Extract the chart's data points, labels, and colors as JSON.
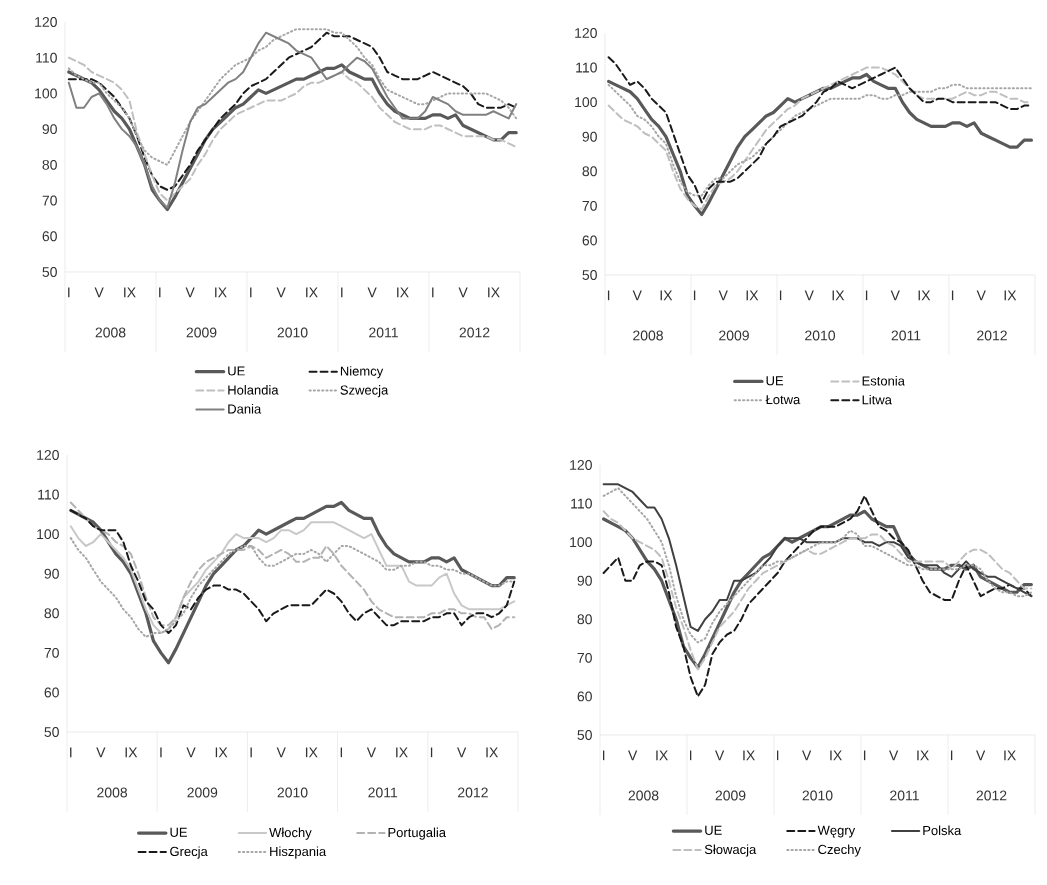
{
  "chart_data": [
    {
      "type": "line",
      "legend": "bottom",
      "ylim": [
        50,
        120
      ],
      "yticks": [
        50,
        60,
        70,
        80,
        90,
        100,
        110,
        120
      ],
      "categories": [
        "I",
        null,
        null,
        null,
        "V",
        null,
        null,
        null,
        "IX",
        null,
        null,
        null,
        "I",
        null,
        null,
        null,
        "V",
        null,
        null,
        null,
        "IX",
        null,
        null,
        null,
        "I",
        null,
        null,
        null,
        "V",
        null,
        null,
        null,
        "IX",
        null,
        null,
        null,
        "I",
        null,
        null,
        null,
        "V",
        null,
        null,
        null,
        "IX",
        null,
        null,
        null,
        "I",
        null,
        null,
        null,
        "V",
        null,
        null,
        null,
        "IX",
        null,
        null,
        null
      ],
      "annotations": [
        "2008",
        "2009",
        "2010",
        "2011",
        "2012"
      ],
      "series": [
        {
          "name": "UE",
          "color": "#595959",
          "line_style": "solid",
          "values": [
            106,
            105,
            104,
            103,
            101,
            98,
            95,
            93,
            90,
            85,
            80,
            73,
            70,
            67.5,
            71,
            75,
            79,
            83,
            87,
            90,
            92,
            94,
            96,
            97,
            99,
            101,
            100,
            101,
            102,
            103,
            104,
            104,
            105,
            106,
            107,
            107,
            108,
            106,
            105,
            104,
            104,
            100,
            97,
            95,
            94,
            93,
            93,
            93,
            94,
            94,
            93,
            94,
            91,
            90,
            89,
            88,
            87,
            87,
            89,
            89
          ]
        },
        {
          "name": "Niemcy",
          "color": "#1a1a1a",
          "line_style": "dashed",
          "values": [
            104,
            104,
            104,
            104,
            103,
            101,
            99,
            96,
            93,
            88,
            82,
            77,
            74,
            73,
            74,
            77,
            80,
            84,
            87,
            90,
            93,
            95,
            97,
            100,
            102,
            103,
            104,
            106,
            108,
            110,
            111,
            112,
            113,
            115,
            117,
            116,
            116,
            116,
            115,
            114,
            113,
            110,
            106,
            105,
            104,
            104,
            104,
            105,
            106,
            105,
            104,
            103,
            102,
            100,
            97,
            96,
            96,
            96,
            97,
            96
          ]
        },
        {
          "name": "Holandia",
          "color": "#bfbfbf",
          "line_style": "dashed",
          "values": [
            110,
            109,
            108,
            106,
            105,
            104,
            103,
            101,
            98,
            89,
            83,
            77,
            72,
            70,
            72,
            74,
            76,
            80,
            83,
            87,
            90,
            92,
            94,
            95,
            96,
            97,
            98,
            98,
            98,
            99,
            100,
            102,
            103,
            103,
            104,
            105,
            106,
            104,
            103,
            101,
            99,
            96,
            94,
            92,
            91,
            90,
            90,
            90,
            91,
            91,
            90,
            89,
            88,
            88,
            88,
            88,
            87,
            87,
            86,
            85
          ]
        },
        {
          "name": "Szwecja",
          "color": "#a6a6a6",
          "line_style": "dotted",
          "values": [
            107,
            105,
            104,
            103,
            103,
            100,
            98,
            96,
            93,
            88,
            84,
            82,
            81,
            80,
            84,
            88,
            92,
            95,
            98,
            101,
            104,
            106,
            108,
            109,
            110,
            112,
            113,
            115,
            116,
            117,
            118,
            118,
            118,
            118,
            118,
            117,
            117,
            115,
            113,
            110,
            108,
            104,
            101,
            100,
            99,
            98,
            97,
            97,
            98,
            99,
            100,
            100,
            100,
            100,
            100,
            100,
            99,
            98,
            96,
            93
          ]
        },
        {
          "name": "Dania",
          "color": "#808080",
          "line_style": "solid",
          "values": [
            103,
            96,
            96,
            99,
            100,
            97,
            93,
            90,
            88,
            85,
            80,
            74,
            70,
            68,
            75,
            84,
            92,
            96,
            97,
            99,
            101,
            103,
            104,
            106,
            110,
            114,
            117,
            116,
            115,
            114,
            112,
            111,
            110,
            107,
            104,
            105,
            106,
            108,
            110,
            109,
            107,
            103,
            99,
            96,
            93,
            93,
            93,
            95,
            99,
            98,
            97,
            95,
            94,
            94,
            94,
            94,
            95,
            94,
            93,
            97
          ]
        }
      ]
    },
    {
      "type": "line",
      "legend": "bottom",
      "ylim": [
        50,
        120
      ],
      "yticks": [
        50,
        60,
        70,
        80,
        90,
        100,
        110,
        120
      ],
      "categories": [
        "I",
        null,
        null,
        null,
        "V",
        null,
        null,
        null,
        "IX",
        null,
        null,
        null,
        "I",
        null,
        null,
        null,
        "V",
        null,
        null,
        null,
        "IX",
        null,
        null,
        null,
        "I",
        null,
        null,
        null,
        "V",
        null,
        null,
        null,
        "IX",
        null,
        null,
        null,
        "I",
        null,
        null,
        null,
        "V",
        null,
        null,
        null,
        "IX",
        null,
        null,
        null,
        "I",
        null,
        null,
        null,
        "V",
        null,
        null,
        null,
        "IX",
        null,
        null,
        null
      ],
      "annotations": [
        "2008",
        "2009",
        "2010",
        "2011",
        "2012"
      ],
      "series": [
        {
          "name": "UE",
          "color": "#595959",
          "line_style": "solid",
          "values": [
            106,
            105,
            104,
            103,
            101,
            98,
            95,
            93,
            90,
            85,
            80,
            73,
            70,
            67.5,
            71,
            75,
            79,
            83,
            87,
            90,
            92,
            94,
            96,
            97,
            99,
            101,
            100,
            101,
            102,
            103,
            104,
            104,
            105,
            106,
            107,
            107,
            108,
            106,
            105,
            104,
            104,
            100,
            97,
            95,
            94,
            93,
            93,
            93,
            94,
            94,
            93,
            94,
            91,
            90,
            89,
            88,
            87,
            87,
            89,
            89
          ]
        },
        {
          "name": "Estonia",
          "color": "#bfbfbf",
          "line_style": "dashed",
          "values": [
            99,
            97,
            95,
            94,
            93,
            91,
            90,
            88,
            86,
            80,
            75,
            72,
            70,
            69,
            73,
            76,
            77,
            78,
            80,
            83,
            86,
            89,
            92,
            94,
            96,
            98,
            99,
            101,
            102,
            103,
            104,
            105,
            106,
            107,
            108,
            109,
            110,
            110,
            110,
            109,
            108,
            106,
            104,
            102,
            101,
            101,
            101,
            101,
            101,
            102,
            103,
            102,
            102,
            103,
            103,
            102,
            101,
            101,
            100,
            100
          ]
        },
        {
          "name": "Łotwa",
          "color": "#a6a6a6",
          "line_style": "dotted",
          "values": [
            105,
            103,
            101,
            99,
            96,
            95,
            93,
            90,
            88,
            82,
            77,
            74,
            73,
            73,
            76,
            78,
            78,
            80,
            82,
            83,
            84,
            86,
            88,
            90,
            92,
            94,
            96,
            97,
            98,
            99,
            100,
            101,
            101,
            101,
            101,
            101,
            102,
            102,
            101,
            101,
            102,
            102,
            103,
            103,
            103,
            103,
            104,
            104,
            105,
            105,
            104,
            104,
            104,
            104,
            104,
            104,
            104,
            104,
            104,
            104
          ]
        },
        {
          "name": "Litwa",
          "color": "#1a1a1a",
          "line_style": "dashed",
          "values": [
            113,
            111,
            108,
            105,
            106,
            104,
            101,
            99,
            97,
            91,
            85,
            79,
            76,
            71,
            75,
            77,
            77,
            77,
            78,
            80,
            82,
            84,
            88,
            90,
            93,
            94,
            95,
            96,
            98,
            100,
            103,
            104,
            106,
            105,
            104,
            105,
            106,
            107,
            108,
            109,
            110,
            107,
            104,
            102,
            100,
            100,
            101,
            101,
            100,
            100,
            100,
            100,
            100,
            100,
            100,
            99,
            98,
            98,
            99,
            99
          ]
        }
      ]
    },
    {
      "type": "line",
      "legend": "bottom",
      "ylim": [
        50,
        120
      ],
      "yticks": [
        50,
        60,
        70,
        80,
        90,
        100,
        110,
        120
      ],
      "categories": [
        "I",
        null,
        null,
        null,
        "V",
        null,
        null,
        null,
        "IX",
        null,
        null,
        null,
        "I",
        null,
        null,
        null,
        "V",
        null,
        null,
        null,
        "IX",
        null,
        null,
        null,
        "I",
        null,
        null,
        null,
        "V",
        null,
        null,
        null,
        "IX",
        null,
        null,
        null,
        "I",
        null,
        null,
        null,
        "V",
        null,
        null,
        null,
        "IX",
        null,
        null,
        null,
        "I",
        null,
        null,
        null,
        "V",
        null,
        null,
        null,
        "IX",
        null,
        null,
        null
      ],
      "annotations": [
        "2008",
        "2009",
        "2010",
        "2011",
        "2012"
      ],
      "series": [
        {
          "name": "UE",
          "color": "#595959",
          "line_style": "solid",
          "values": [
            106,
            105,
            104,
            103,
            101,
            98,
            95,
            93,
            90,
            85,
            80,
            73,
            70,
            67.5,
            71,
            75,
            79,
            83,
            87,
            90,
            92,
            94,
            96,
            97,
            99,
            101,
            100,
            101,
            102,
            103,
            104,
            104,
            105,
            106,
            107,
            107,
            108,
            106,
            105,
            104,
            104,
            100,
            97,
            95,
            94,
            93,
            93,
            93,
            94,
            94,
            93,
            94,
            91,
            90,
            89,
            88,
            87,
            87,
            89,
            89
          ]
        },
        {
          "name": "Włochy",
          "color": "#c8c8c8",
          "line_style": "solid",
          "values": [
            102,
            99,
            97,
            98,
            100,
            98,
            96,
            94,
            91,
            86,
            81,
            77,
            75,
            76,
            79,
            84,
            86,
            88,
            91,
            93,
            95,
            98,
            100,
            99,
            99,
            99,
            98,
            99,
            101,
            101,
            100,
            101,
            103,
            103,
            103,
            103,
            102,
            101,
            100,
            99,
            100,
            96,
            92,
            92,
            92,
            88,
            87,
            87,
            87,
            89,
            90,
            85,
            82,
            81,
            81,
            81,
            81,
            81,
            82,
            83
          ]
        },
        {
          "name": "Portugalia",
          "color": "#b3b3b3",
          "line_style": "dashed",
          "values": [
            108,
            106,
            104,
            102,
            101,
            100,
            98,
            97,
            95,
            90,
            84,
            79,
            77,
            77,
            79,
            84,
            88,
            91,
            93,
            94,
            95,
            96,
            96,
            96,
            97,
            96,
            94,
            95,
            96,
            95,
            93,
            93,
            94,
            94,
            97,
            95,
            92,
            90,
            88,
            86,
            83,
            81,
            80,
            79,
            79,
            79,
            79,
            79,
            80,
            80,
            81,
            81,
            80,
            80,
            79,
            79,
            76,
            77,
            79,
            79
          ]
        },
        {
          "name": "Grecja",
          "color": "#1a1a1a",
          "line_style": "dashed",
          "values": [
            106,
            105,
            104,
            102,
            101,
            101,
            101,
            98,
            92,
            88,
            83,
            81,
            77,
            75,
            77,
            82,
            81,
            84,
            86,
            87,
            87,
            86,
            86,
            85,
            83,
            81,
            78,
            80,
            81,
            82,
            82,
            82,
            82,
            84,
            86,
            85,
            83,
            80,
            78,
            80,
            81,
            79,
            77,
            77,
            78,
            78,
            78,
            78,
            79,
            79,
            80,
            80,
            77,
            79,
            80,
            80,
            79,
            80,
            82,
            88
          ]
        },
        {
          "name": "Hiszpania",
          "color": "#a6a6a6",
          "line_style": "dotted",
          "values": [
            99,
            96,
            94,
            91,
            88,
            86,
            84,
            81,
            79,
            76,
            74,
            75,
            75,
            76,
            78,
            80,
            84,
            87,
            89,
            91,
            93,
            95,
            96,
            97,
            97,
            94,
            92,
            92,
            93,
            94,
            95,
            95,
            96,
            95,
            93,
            95,
            97,
            97,
            96,
            95,
            94,
            93,
            91,
            91,
            92,
            92,
            93,
            93,
            92,
            92,
            91,
            91,
            90,
            90,
            89,
            88,
            87,
            87,
            88,
            88
          ]
        }
      ]
    },
    {
      "type": "line",
      "legend": "bottom",
      "ylim": [
        50,
        120
      ],
      "yticks": [
        50,
        60,
        70,
        80,
        90,
        100,
        110,
        120
      ],
      "categories": [
        "I",
        null,
        null,
        null,
        "V",
        null,
        null,
        null,
        "IX",
        null,
        null,
        null,
        "I",
        null,
        null,
        null,
        "V",
        null,
        null,
        null,
        "IX",
        null,
        null,
        null,
        "I",
        null,
        null,
        null,
        "V",
        null,
        null,
        null,
        "IX",
        null,
        null,
        null,
        "I",
        null,
        null,
        null,
        "V",
        null,
        null,
        null,
        "IX",
        null,
        null,
        null,
        "I",
        null,
        null,
        null,
        "V",
        null,
        null,
        null,
        "IX",
        null,
        null,
        null
      ],
      "annotations": [
        "2008",
        "2009",
        "2010",
        "2011",
        "2012"
      ],
      "series": [
        {
          "name": "UE",
          "color": "#595959",
          "line_style": "solid",
          "values": [
            106,
            105,
            104,
            103,
            101,
            98,
            95,
            93,
            90,
            85,
            80,
            73,
            70,
            67.5,
            71,
            75,
            79,
            83,
            87,
            90,
            92,
            94,
            96,
            97,
            99,
            101,
            100,
            101,
            102,
            103,
            104,
            104,
            105,
            106,
            107,
            107,
            108,
            106,
            105,
            104,
            104,
            100,
            97,
            95,
            94,
            93,
            93,
            93,
            94,
            94,
            93,
            94,
            91,
            90,
            89,
            88,
            87,
            87,
            89,
            89
          ]
        },
        {
          "name": "Węgry",
          "color": "#1a1a1a",
          "line_style": "dashed",
          "values": [
            92,
            94,
            96,
            90,
            90,
            94,
            95,
            95,
            94,
            87,
            78,
            73,
            65,
            60,
            63,
            71,
            74,
            76,
            77,
            80,
            84,
            86,
            88,
            90,
            92,
            95,
            97,
            99,
            101,
            103,
            104,
            104,
            104,
            105,
            106,
            108,
            112,
            108,
            104,
            103,
            101,
            100,
            98,
            94,
            90,
            87,
            86,
            85,
            85,
            90,
            94,
            90,
            86,
            87,
            88,
            88,
            89,
            88,
            88,
            86
          ]
        },
        {
          "name": "Polska",
          "color": "#404040",
          "line_style": "solid",
          "values": [
            115,
            115,
            115,
            114,
            113,
            111,
            109,
            109,
            106,
            101,
            94,
            86,
            78,
            77,
            80,
            82,
            85,
            85,
            90,
            90,
            91,
            92,
            94,
            96,
            99,
            101,
            101,
            101,
            100,
            100,
            100,
            100,
            100,
            101,
            101,
            101,
            100,
            100,
            99,
            100,
            100,
            99,
            96,
            95,
            94,
            94,
            94,
            92,
            91,
            93,
            95,
            93,
            92,
            91,
            91,
            90,
            89,
            88,
            87,
            86
          ]
        },
        {
          "name": "Słowacja",
          "color": "#bfbfbf",
          "line_style": "dashed",
          "values": [
            108,
            106,
            105,
            103,
            101,
            100,
            99,
            98,
            96,
            90,
            83,
            78,
            72,
            67,
            70,
            74,
            78,
            80,
            82,
            85,
            88,
            90,
            92,
            93,
            94,
            95,
            96,
            97,
            98,
            97,
            97,
            98,
            99,
            100,
            101,
            101,
            101,
            102,
            102,
            100,
            99,
            97,
            95,
            95,
            95,
            95,
            95,
            95,
            93,
            95,
            97,
            98,
            98,
            97,
            95,
            93,
            92,
            90,
            88,
            88
          ]
        },
        {
          "name": "Czechy",
          "color": "#a6a6a6",
          "line_style": "dotted",
          "values": [
            112,
            113,
            114,
            112,
            110,
            108,
            106,
            103,
            100,
            94,
            86,
            80,
            76,
            74,
            75,
            79,
            82,
            84,
            86,
            88,
            90,
            92,
            94,
            94,
            95,
            95,
            96,
            97,
            98,
            99,
            100,
            100,
            100,
            101,
            103,
            102,
            99,
            99,
            98,
            97,
            96,
            95,
            94,
            94,
            93,
            93,
            93,
            93,
            93,
            93,
            94,
            94,
            93,
            90,
            88,
            87,
            87,
            86,
            86,
            87
          ]
        }
      ]
    }
  ]
}
